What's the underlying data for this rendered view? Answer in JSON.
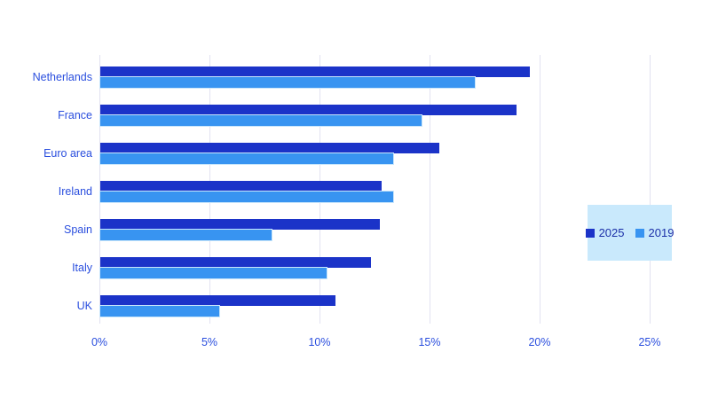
{
  "page": {
    "background": "#ffffff"
  },
  "colors": {
    "series_2025": "#1b33c8",
    "series_2019": "#3894f1",
    "light_bar_border": "#c9e6fb",
    "gridline": "#e2e2f1",
    "axis_label_text": "#2a4ede",
    "legend_bg": "#c9e9fc",
    "legend_text": "#1b2fa8"
  },
  "chart_data": {
    "type": "bar",
    "orientation": "horizontal",
    "title": "",
    "xlabel": "",
    "ylabel": "",
    "categories": [
      "Netherlands",
      "France",
      "Euro area",
      "Ireland",
      "Spain",
      "Italy",
      "UK"
    ],
    "series": [
      {
        "name": "2025",
        "color": "#1b33c8",
        "values": [
          19.5,
          18.9,
          15.4,
          12.8,
          12.7,
          12.3,
          10.7
        ]
      },
      {
        "name": "2019",
        "color": "#3894f1",
        "values": [
          17.0,
          14.6,
          13.3,
          13.3,
          7.8,
          10.3,
          5.4
        ]
      }
    ],
    "xlim": [
      0,
      25
    ],
    "x_ticks": [
      "0%",
      "5%",
      "10%",
      "15%",
      "20%",
      "25%"
    ],
    "x_tick_values": [
      0,
      5,
      10,
      15,
      20,
      25
    ],
    "grid": "vertical",
    "legend_position": "right"
  }
}
